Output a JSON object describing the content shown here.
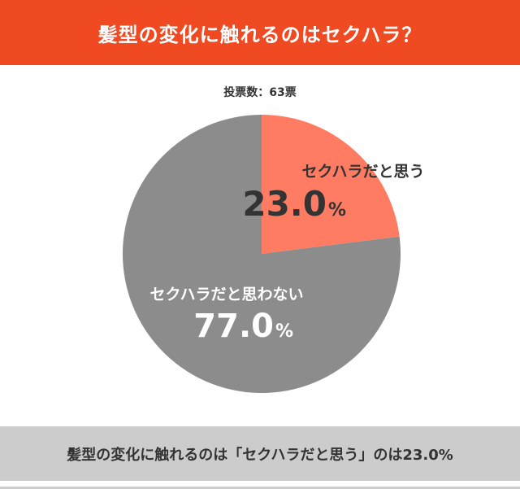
{
  "header": {
    "title": "髪型の変化に触れるのはセクハラ？"
  },
  "votes_text": "投票数：63票",
  "footer": {
    "text": "髪型の変化に触れるのは「セクハラだと思う」のは23.0%"
  },
  "colors": {
    "header_bg": "#f04a22",
    "footer_bg": "#cccccc",
    "slice_yes": "#ff7c62",
    "slice_no": "#8c8c8c"
  },
  "chart_data": {
    "type": "pie",
    "total_votes": 63,
    "slices": [
      {
        "label": "セクハラだと思う",
        "value": 23.0,
        "display": "23.0",
        "unit": "%"
      },
      {
        "label": "セクハラだと思わない",
        "value": 77.0,
        "display": "77.0",
        "unit": "%"
      }
    ]
  }
}
